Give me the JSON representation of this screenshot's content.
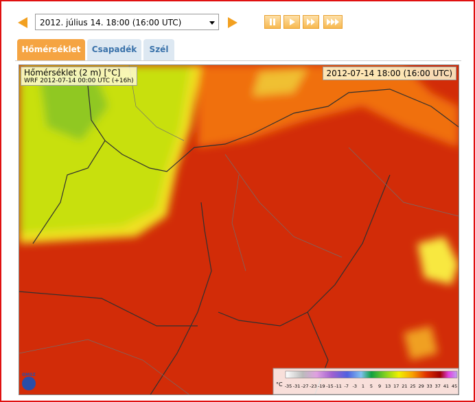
{
  "header": {
    "datetime_select": "2012. július 14. 18:00 (16:00 UTC)"
  },
  "tabs": [
    "Hőmérséklet",
    "Csapadék",
    "Szél"
  ],
  "map": {
    "title": "Hőmérséklet (2 m) [°C]",
    "subtitle": "WRF 2012-07-14 00:00 UTC (+16h)",
    "valid_time": "2012-07-14 18:00 (16:00 UTC)",
    "logo": "OMSZ",
    "legend": {
      "unit": "°C",
      "ticks": [
        -35,
        -31,
        -27,
        -23,
        -19,
        -15,
        -11,
        -7,
        -3,
        1,
        5,
        9,
        13,
        17,
        21,
        25,
        29,
        33,
        37,
        41,
        45
      ]
    }
  }
}
